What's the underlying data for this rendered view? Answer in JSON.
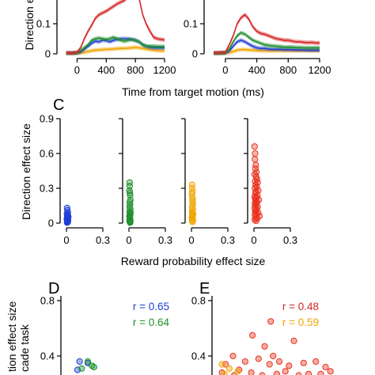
{
  "panel_labels": {
    "c": "C",
    "d": "D",
    "e": "E"
  },
  "chart_data": [
    {
      "id": "top-row-timecourse",
      "type": "line",
      "xlabel": "Time from target motion (ms)",
      "ylabel": "Direction e",
      "x_ticks": [
        "0",
        "400",
        "800",
        "1200"
      ],
      "y_ticks": [
        "0",
        "0.1"
      ],
      "xlim": [
        -200,
        1200
      ],
      "ylim": [
        0,
        0.2
      ],
      "subplots": [
        {
          "name": "left",
          "series": [
            {
              "color": "#d62728",
              "x": [
                -150,
                -75,
                0,
                50,
                100,
                150,
                200,
                250,
                300,
                350,
                400,
                450,
                500,
                550,
                600,
                650,
                700,
                750,
                800,
                850,
                900,
                950,
                1000,
                1050,
                1100,
                1150,
                1200
              ],
              "values": [
                0.003,
                0.003,
                0.005,
                0.02,
                0.05,
                0.075,
                0.095,
                0.118,
                0.13,
                0.136,
                0.142,
                0.15,
                0.158,
                0.166,
                0.172,
                0.178,
                0.19,
                0.205,
                0.215,
                0.185,
                0.13,
                0.098,
                0.075,
                0.055,
                0.05,
                0.048,
                0.046
              ]
            },
            {
              "color": "#1f8f2e",
              "x": [
                -150,
                -75,
                0,
                50,
                100,
                150,
                200,
                250,
                300,
                350,
                400,
                450,
                500,
                550,
                600,
                650,
                700,
                750,
                800,
                850,
                900,
                950,
                1000,
                1050,
                1100,
                1150,
                1200
              ],
              "values": [
                0.002,
                0.002,
                0.003,
                0.01,
                0.02,
                0.03,
                0.045,
                0.05,
                0.052,
                0.05,
                0.048,
                0.05,
                0.055,
                0.05,
                0.045,
                0.042,
                0.045,
                0.048,
                0.045,
                0.04,
                0.03,
                0.025,
                0.025,
                0.025,
                0.024,
                0.024,
                0.024
              ]
            },
            {
              "color": "#1f3fd6",
              "x": [
                -150,
                -75,
                0,
                50,
                100,
                150,
                200,
                250,
                300,
                350,
                400,
                450,
                500,
                550,
                600,
                650,
                700,
                750,
                800,
                850,
                900,
                950,
                1000,
                1050,
                1100,
                1150,
                1200
              ],
              "values": [
                0.002,
                0.002,
                0.003,
                0.006,
                0.015,
                0.025,
                0.035,
                0.042,
                0.04,
                0.045,
                0.044,
                0.04,
                0.045,
                0.048,
                0.05,
                0.05,
                0.05,
                0.048,
                0.045,
                0.04,
                0.03,
                0.025,
                0.022,
                0.02,
                0.02,
                0.02,
                0.02
              ]
            },
            {
              "color": "#f0a500",
              "x": [
                -150,
                -75,
                0,
                50,
                100,
                150,
                200,
                250,
                300,
                350,
                400,
                450,
                500,
                550,
                600,
                650,
                700,
                750,
                800,
                850,
                900,
                950,
                1000,
                1050,
                1100,
                1150,
                1200
              ],
              "values": [
                0.002,
                0.002,
                0.002,
                0.003,
                0.005,
                0.008,
                0.01,
                0.012,
                0.013,
                0.014,
                0.015,
                0.015,
                0.016,
                0.017,
                0.018,
                0.018,
                0.019,
                0.02,
                0.021,
                0.02,
                0.018,
                0.016,
                0.014,
                0.012,
                0.011,
                0.01,
                0.01
              ]
            }
          ]
        },
        {
          "name": "right",
          "series": [
            {
              "color": "#d62728",
              "x": [
                -150,
                -75,
                0,
                50,
                100,
                150,
                200,
                250,
                300,
                350,
                400,
                450,
                500,
                550,
                600,
                650,
                700,
                750,
                800,
                850,
                900,
                950,
                1000,
                1050,
                1100,
                1150,
                1200
              ],
              "values": [
                0.003,
                0.004,
                0.005,
                0.03,
                0.06,
                0.1,
                0.12,
                0.13,
                0.115,
                0.09,
                0.075,
                0.068,
                0.065,
                0.06,
                0.055,
                0.05,
                0.048,
                0.045,
                0.045,
                0.042,
                0.04,
                0.04,
                0.038,
                0.037,
                0.038,
                0.036,
                0.036
              ]
            },
            {
              "color": "#1f8f2e",
              "x": [
                -150,
                -75,
                0,
                50,
                100,
                150,
                200,
                250,
                300,
                350,
                400,
                450,
                500,
                550,
                600,
                650,
                700,
                750,
                800,
                850,
                900,
                950,
                1000,
                1050,
                1100,
                1150,
                1200
              ],
              "values": [
                0.002,
                0.002,
                0.003,
                0.015,
                0.04,
                0.06,
                0.07,
                0.065,
                0.055,
                0.045,
                0.04,
                0.035,
                0.03,
                0.028,
                0.026,
                0.025,
                0.024,
                0.022,
                0.022,
                0.022,
                0.021,
                0.021,
                0.02,
                0.02,
                0.02,
                0.02,
                0.02
              ]
            },
            {
              "color": "#1f3fd6",
              "x": [
                -150,
                -75,
                0,
                50,
                100,
                150,
                200,
                250,
                300,
                350,
                400,
                450,
                500,
                550,
                600,
                650,
                700,
                750,
                800,
                850,
                900,
                950,
                1000,
                1050,
                1100,
                1150,
                1200
              ],
              "values": [
                0.002,
                0.002,
                0.003,
                0.01,
                0.025,
                0.04,
                0.045,
                0.04,
                0.032,
                0.025,
                0.02,
                0.018,
                0.018,
                0.016,
                0.015,
                0.015,
                0.015,
                0.014,
                0.014,
                0.014,
                0.013,
                0.013,
                0.013,
                0.012,
                0.012,
                0.012,
                0.012
              ]
            },
            {
              "color": "#f0a500",
              "x": [
                -150,
                -75,
                0,
                50,
                100,
                150,
                200,
                250,
                300,
                350,
                400,
                450,
                500,
                550,
                600,
                650,
                700,
                750,
                800,
                850,
                900,
                950,
                1000,
                1050,
                1100,
                1150,
                1200
              ],
              "values": [
                0.002,
                0.002,
                0.002,
                0.004,
                0.008,
                0.012,
                0.014,
                0.014,
                0.013,
                0.012,
                0.011,
                0.01,
                0.01,
                0.01,
                0.01,
                0.01,
                0.01,
                0.01,
                0.01,
                0.01,
                0.01,
                0.01,
                0.01,
                0.01,
                0.01,
                0.01,
                0.01
              ]
            }
          ]
        }
      ]
    },
    {
      "id": "panel-c",
      "type": "scatter",
      "xlabel": "Reward probability effect size",
      "ylabel": "Direction effect size",
      "x_ticks": [
        "0",
        "0.3"
      ],
      "y_ticks": [
        "0",
        "0.3",
        "0.6",
        "0.9"
      ],
      "xlim": [
        -0.02,
        0.3
      ],
      "ylim": [
        0,
        0.9
      ],
      "subplots": [
        {
          "name": "c1",
          "color": "#1f3fd6",
          "x": [
            0.005,
            0.008,
            0.012,
            0.004,
            0.007,
            0.01,
            0.015,
            0.006,
            0.009,
            0.011,
            0.003,
            0.013,
            0.008,
            0.006,
            0.01,
            0.012,
            0.005,
            0.009
          ],
          "values": [
            0.13,
            0.11,
            0.09,
            0.08,
            0.07,
            0.06,
            0.055,
            0.05,
            0.045,
            0.04,
            0.035,
            0.03,
            0.025,
            0.02,
            0.015,
            0.01,
            0.005,
            0.008
          ]
        },
        {
          "name": "c2",
          "color": "#1f8f2e",
          "x": [
            0.005,
            0.006,
            0.004,
            0.008,
            0.01,
            0.012,
            0.007,
            0.009,
            0.006,
            0.011,
            0.005,
            0.013,
            0.008,
            0.01,
            0.004,
            0.007,
            0.009,
            0.006,
            0.012,
            0.005,
            0.008,
            0.01
          ],
          "values": [
            0.35,
            0.32,
            0.28,
            0.26,
            0.24,
            0.2,
            0.18,
            0.16,
            0.14,
            0.12,
            0.1,
            0.09,
            0.08,
            0.07,
            0.06,
            0.05,
            0.04,
            0.03,
            0.02,
            0.015,
            0.01,
            0.005
          ]
        },
        {
          "name": "c3",
          "color": "#f0a500",
          "x": [
            0.005,
            0.006,
            0.008,
            0.004,
            0.007,
            0.01,
            0.009,
            0.012,
            0.006,
            0.011,
            0.005,
            0.008,
            0.013,
            0.007,
            0.009,
            0.004,
            0.01,
            0.006,
            0.012,
            0.008
          ],
          "values": [
            0.33,
            0.3,
            0.27,
            0.25,
            0.22,
            0.2,
            0.18,
            0.16,
            0.14,
            0.12,
            0.1,
            0.09,
            0.08,
            0.07,
            0.06,
            0.05,
            0.04,
            0.03,
            0.02,
            0.01
          ]
        },
        {
          "name": "c4",
          "color": "#e8321e",
          "x": [
            0.005,
            0.01,
            0.008,
            0.015,
            0.012,
            0.02,
            0.006,
            0.018,
            0.025,
            0.01,
            0.03,
            0.014,
            0.022,
            0.008,
            0.035,
            0.016,
            0.012,
            0.028,
            0.006,
            0.02,
            0.01,
            0.04,
            0.015,
            0.024,
            0.008,
            0.018,
            0.012,
            0.03,
            0.005,
            0.022,
            0.016,
            0.01,
            0.035,
            0.02,
            0.008,
            0.045,
            0.014,
            0.026,
            0.006,
            0.018
          ],
          "values": [
            0.66,
            0.6,
            0.55,
            0.5,
            0.47,
            0.44,
            0.42,
            0.4,
            0.38,
            0.36,
            0.35,
            0.33,
            0.31,
            0.3,
            0.28,
            0.27,
            0.26,
            0.24,
            0.23,
            0.22,
            0.21,
            0.2,
            0.19,
            0.18,
            0.17,
            0.16,
            0.15,
            0.14,
            0.13,
            0.12,
            0.11,
            0.1,
            0.09,
            0.08,
            0.07,
            0.06,
            0.05,
            0.04,
            0.03,
            0.02
          ]
        }
      ]
    },
    {
      "id": "panel-d",
      "type": "scatter",
      "ylabel": "tion effect size\ncade task",
      "y_ticks": [
        "0.4",
        "0.8"
      ],
      "ylim": [
        0,
        0.8
      ],
      "annotations": [
        {
          "text": "r = 0.65",
          "color": "#1f3fd6"
        },
        {
          "text": "r = 0.64",
          "color": "#1f8f2e"
        }
      ],
      "series": [
        {
          "color": "#1f3fd6",
          "x": [
            0.12,
            0.2,
            0.1
          ],
          "values": [
            0.36,
            0.35,
            0.3
          ]
        },
        {
          "color": "#1f8f2e",
          "x": [
            0.2,
            0.24,
            0.26,
            0.14
          ],
          "values": [
            0.36,
            0.33,
            0.32,
            0.31
          ]
        }
      ],
      "xlim": [
        0,
        1
      ]
    },
    {
      "id": "panel-e",
      "type": "scatter",
      "y_ticks": [
        "0.4",
        "0.8"
      ],
      "ylim": [
        0,
        0.8
      ],
      "annotations": [
        {
          "text": "r = 0.48",
          "color": "#d62728"
        },
        {
          "text": "r = 0.59",
          "color": "#f0a500"
        }
      ],
      "series": [
        {
          "color": "#e8321e",
          "x": [
            0.43,
            0.28,
            0.62,
            0.38,
            0.45,
            0.12,
            0.33,
            0.5,
            0.06,
            0.22,
            0.42,
            0.58,
            0.7,
            0.8,
            0.88,
            0.17,
            0.27,
            0.55,
            0.74,
            0.92,
            0.03,
            0.13,
            0.36,
            0.48,
            0.66,
            0.84
          ],
          "values": [
            0.65,
            0.55,
            0.51,
            0.47,
            0.4,
            0.4,
            0.38,
            0.36,
            0.34,
            0.36,
            0.34,
            0.33,
            0.35,
            0.36,
            0.32,
            0.3,
            0.28,
            0.29,
            0.27,
            0.29,
            0.28,
            0.26,
            0.26,
            0.27,
            0.26,
            0.27
          ]
        },
        {
          "color": "#f0a500",
          "x": [
            0.03,
            0.09,
            0.16,
            0.05
          ],
          "values": [
            0.34,
            0.31,
            0.29,
            0.27
          ]
        }
      ],
      "xlim": [
        0,
        1
      ]
    }
  ]
}
